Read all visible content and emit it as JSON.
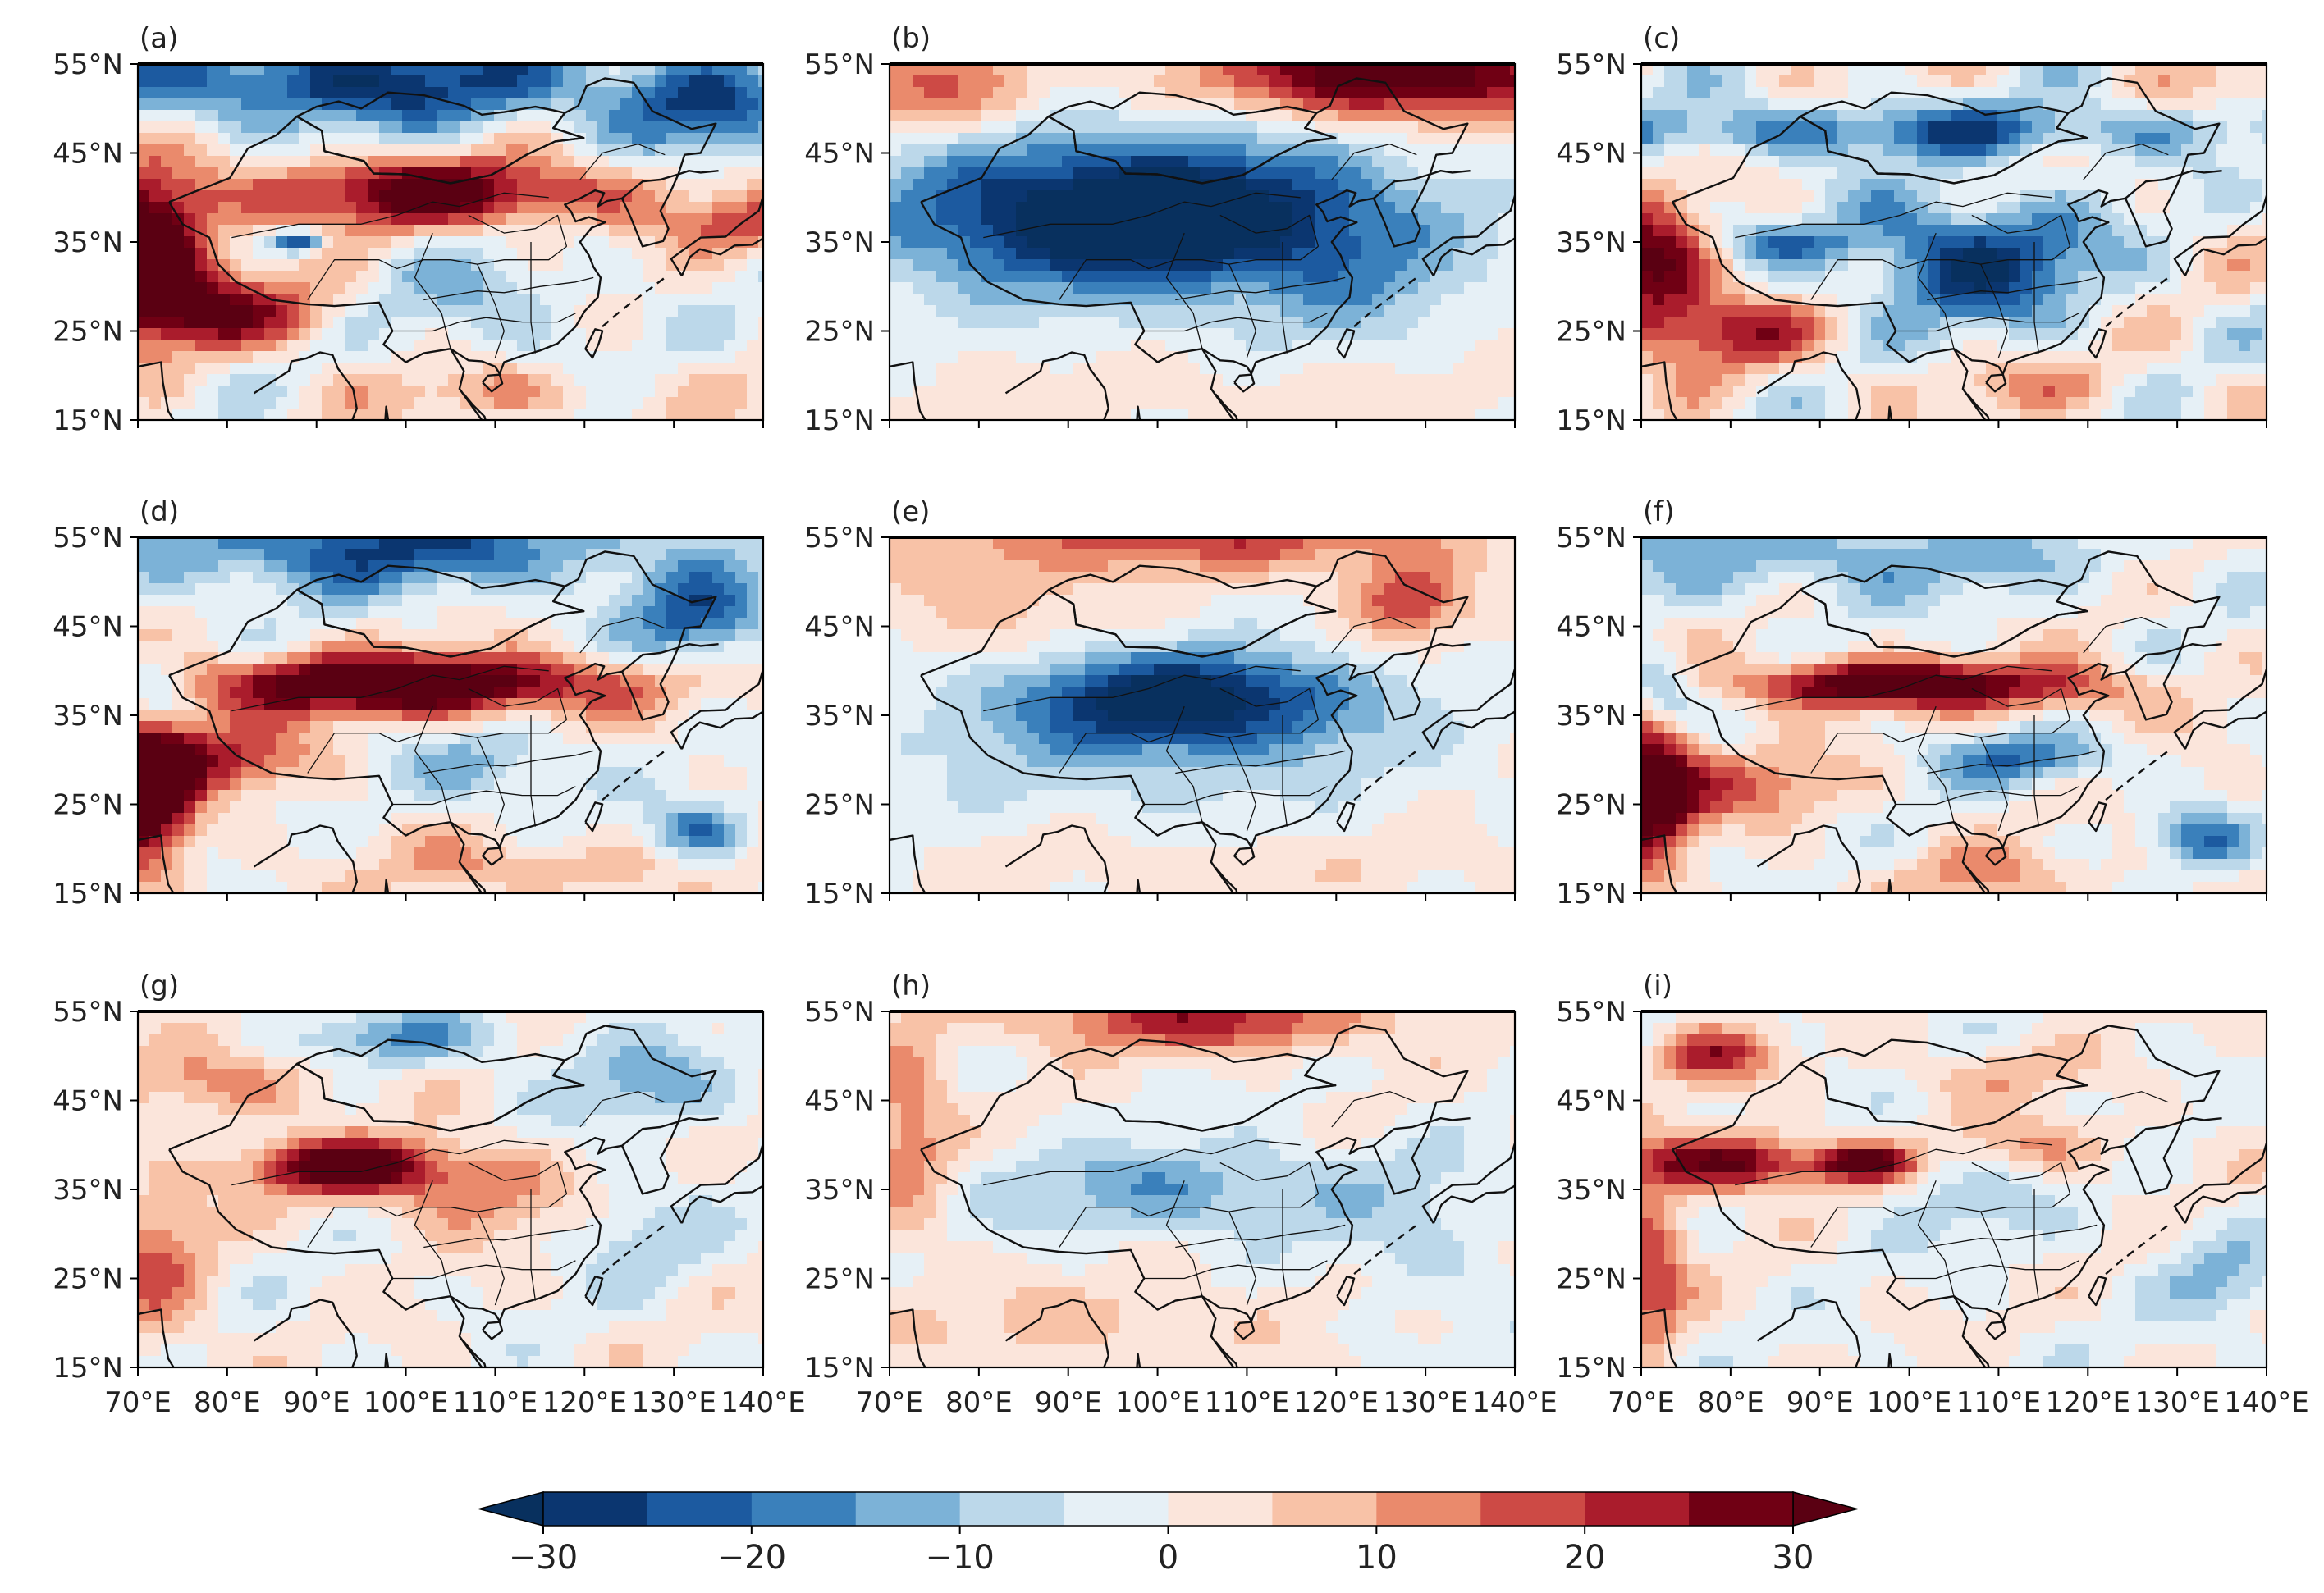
{
  "panels": [
    {
      "label": "(a)",
      "pattern": "a"
    },
    {
      "label": "(b)",
      "pattern": "b"
    },
    {
      "label": "(c)",
      "pattern": "c"
    },
    {
      "label": "(d)",
      "pattern": "d"
    },
    {
      "label": "(e)",
      "pattern": "e"
    },
    {
      "label": "(f)",
      "pattern": "f"
    },
    {
      "label": "(g)",
      "pattern": "g"
    },
    {
      "label": "(h)",
      "pattern": "h"
    },
    {
      "label": "(i)",
      "pattern": "i"
    }
  ],
  "lat_ticks": [
    "55°N",
    "45°N",
    "35°N",
    "25°N",
    "15°N"
  ],
  "lon_ticks": [
    "70°E",
    "80°E",
    "90°E",
    "100°E",
    "110°E",
    "120°E",
    "130°E",
    "140°E"
  ],
  "colorbar": {
    "ticks": [
      "−30",
      "−20",
      "−10",
      "0",
      "10",
      "20",
      "30"
    ],
    "bounds": [
      -30,
      -25,
      -20,
      -15,
      -10,
      -5,
      0,
      5,
      10,
      15,
      20,
      25,
      30
    ],
    "colors": [
      "#0b3670",
      "#1c5aa0",
      "#3a80bb",
      "#7cb2d7",
      "#bcd8ea",
      "#e6f0f6",
      "#fbe5db",
      "#f8c2a7",
      "#ea8a6c",
      "#cd4a45",
      "#aa1c2c",
      "#700014"
    ],
    "under_color": "#08305e",
    "over_color": "#5a0012"
  }
}
